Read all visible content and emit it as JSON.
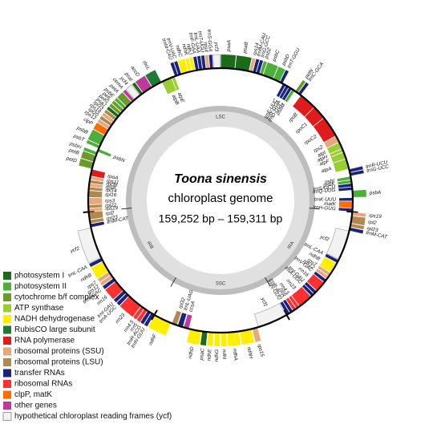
{
  "title": "Toona sinensis",
  "subtitle": "chloroplast genome",
  "size": "159,252 bp – 159,311 bp",
  "regions": [
    {
      "name": "LSC",
      "genes": [
        {
          "label": "rps19",
          "color": "#e8a87c"
        },
        {
          "label": "rpl22",
          "color": "#b08850"
        },
        {
          "label": "rps3",
          "color": "#e8a87c"
        },
        {
          "label": "rpl16",
          "color": "#b08850"
        },
        {
          "label": "rpl14",
          "color": "#b08850"
        },
        {
          "label": "rps8",
          "color": "#e8a87c"
        },
        {
          "label": "rpl36",
          "color": "#b08850"
        },
        {
          "label": "rps11",
          "color": "#e8a87c"
        },
        {
          "label": "rpoA",
          "color": "#e01b1b"
        },
        {
          "label": "petD",
          "color": "#6b9a2a"
        },
        {
          "label": "petB",
          "color": "#6b9a2a"
        },
        {
          "label": "psbH",
          "color": "#4caf3a"
        },
        {
          "label": "psbN",
          "color": "#4caf3a"
        },
        {
          "label": "psbT",
          "color": "#4caf3a"
        },
        {
          "label": "psbB",
          "color": "#4caf3a"
        },
        {
          "label": "clpP",
          "color": "#ff6d00"
        },
        {
          "label": "rps12",
          "color": "#e8a87c"
        },
        {
          "label": "rpl20",
          "color": "#b08850"
        },
        {
          "label": "rps18",
          "color": "#e8a87c"
        },
        {
          "label": "rpl33",
          "color": "#b08850"
        },
        {
          "label": "psaJ",
          "color": "#1b6b1b"
        },
        {
          "label": "petG",
          "color": "#6b9a2a"
        },
        {
          "label": "petL",
          "color": "#6b9a2a"
        },
        {
          "label": "psbE",
          "color": "#4caf3a"
        },
        {
          "label": "petA",
          "color": "#6b9a2a"
        },
        {
          "label": "cemA",
          "color": "#c0399a"
        },
        {
          "label": "ycf4",
          "color": "#f2f2f2"
        },
        {
          "label": "psaI",
          "color": "#1b6b1b"
        },
        {
          "label": "accD",
          "color": "#c0399a"
        },
        {
          "label": "rbcL",
          "color": "#1f7a3a"
        },
        {
          "label": "atpB",
          "color": "#9acd32"
        },
        {
          "label": "atpE",
          "color": "#9acd32"
        },
        {
          "label": "trnM-CAU",
          "color": "#1a237e"
        },
        {
          "label": "trnV-UAC",
          "color": "#1a237e"
        },
        {
          "label": "ndhC",
          "color": "#ffee00"
        },
        {
          "label": "ndhK",
          "color": "#ffee00"
        },
        {
          "label": "ndhJ",
          "color": "#ffee00"
        },
        {
          "label": "trnF-GAA",
          "color": "#1a237e"
        },
        {
          "label": "trnL-UAA",
          "color": "#1a237e"
        },
        {
          "label": "trnT-UGU",
          "color": "#1a237e"
        },
        {
          "label": "rps4",
          "color": "#e8a87c"
        },
        {
          "label": "trnS-GGA",
          "color": "#1a237e"
        },
        {
          "label": "ycf3",
          "color": "#f2f2f2"
        },
        {
          "label": "psaA",
          "color": "#1b6b1b"
        },
        {
          "label": "psaB",
          "color": "#1b6b1b"
        },
        {
          "label": "rps14",
          "color": "#e8a87c"
        },
        {
          "label": "trnfM-CAU",
          "color": "#1a237e"
        },
        {
          "label": "trnG-GCC",
          "color": "#1a237e"
        },
        {
          "label": "psbZ",
          "color": "#4caf3a"
        },
        {
          "label": "psbC",
          "color": "#4caf3a"
        },
        {
          "label": "psbD",
          "color": "#4caf3a"
        },
        {
          "label": "trnT-GGU",
          "color": "#1a237e"
        },
        {
          "label": "trnE-UUC",
          "color": "#1a237e"
        },
        {
          "label": "trnY-GUA",
          "color": "#1a237e"
        },
        {
          "label": "trnD-GUC",
          "color": "#1a237e"
        },
        {
          "label": "psbM",
          "color": "#4caf3a"
        },
        {
          "label": "petN",
          "color": "#6b9a2a"
        },
        {
          "label": "trnC-GCA",
          "color": "#1a237e"
        },
        {
          "label": "rpoB",
          "color": "#e01b1b"
        },
        {
          "label": "rpoC1",
          "color": "#e01b1b"
        },
        {
          "label": "rpoC2",
          "color": "#e01b1b"
        },
        {
          "label": "rps2",
          "color": "#e8a87c"
        },
        {
          "label": "atpI",
          "color": "#9acd32"
        },
        {
          "label": "atpH",
          "color": "#9acd32"
        },
        {
          "label": "atpF",
          "color": "#9acd32"
        },
        {
          "label": "atpA",
          "color": "#9acd32"
        },
        {
          "label": "trnR-UCU",
          "color": "#1a237e"
        },
        {
          "label": "trnG-UCC",
          "color": "#1a237e"
        },
        {
          "label": "psbI",
          "color": "#4caf3a"
        },
        {
          "label": "psbK",
          "color": "#4caf3a"
        },
        {
          "label": "trnS-GCU",
          "color": "#1a237e"
        },
        {
          "label": "trnQ-UUG",
          "color": "#1a237e"
        },
        {
          "label": "psbA",
          "color": "#4caf3a"
        },
        {
          "label": "trnK-UUU",
          "color": "#1a237e"
        },
        {
          "label": "matK",
          "color": "#ff6d00"
        },
        {
          "label": "trnH-GUG",
          "color": "#1a237e"
        }
      ]
    },
    {
      "name": "IRA",
      "genes": [
        {
          "label": "rps19",
          "color": "#e8a87c"
        },
        {
          "label": "rpl2",
          "color": "#b08850"
        },
        {
          "label": "rpl23",
          "color": "#b08850"
        },
        {
          "label": "trnM-CAT",
          "color": "#1a237e"
        },
        {
          "label": "ycf2",
          "color": "#f2f2f2"
        },
        {
          "label": "trnL-CAA",
          "color": "#1a237e"
        },
        {
          "label": "ndhB",
          "color": "#ffee00"
        },
        {
          "label": "rps7",
          "color": "#e8a87c"
        },
        {
          "label": "rps12",
          "color": "#e8a87c"
        },
        {
          "label": "trnV-GAC",
          "color": "#1a237e"
        },
        {
          "label": "rrn16",
          "color": "#ff3030"
        },
        {
          "label": "trnI-GAU",
          "color": "#1a237e"
        },
        {
          "label": "trnA-UGC",
          "color": "#1a237e"
        },
        {
          "label": "rrn23",
          "color": "#ff3030"
        },
        {
          "label": "rrn4.5",
          "color": "#ff3030"
        },
        {
          "label": "rrn5",
          "color": "#ff3030"
        },
        {
          "label": "trnR-ACG",
          "color": "#1a237e"
        },
        {
          "label": "trnN-GUU",
          "color": "#1a237e"
        }
      ]
    },
    {
      "name": "SSC",
      "genes": [
        {
          "label": "ycf1",
          "color": "#f2f2f2"
        },
        {
          "label": "rps15",
          "color": "#e8a87c"
        },
        {
          "label": "ndhH",
          "color": "#ffee00"
        },
        {
          "label": "ndhA",
          "color": "#ffee00"
        },
        {
          "label": "ndhI",
          "color": "#ffee00"
        },
        {
          "label": "ndhG",
          "color": "#ffee00"
        },
        {
          "label": "ndhE",
          "color": "#ffee00"
        },
        {
          "label": "psaC",
          "color": "#1b6b1b"
        },
        {
          "label": "ndhD",
          "color": "#ffee00"
        },
        {
          "label": "ccsA",
          "color": "#c0399a"
        },
        {
          "label": "trnL-UAG",
          "color": "#1a237e"
        },
        {
          "label": "rpl32",
          "color": "#b08850"
        },
        {
          "label": "ndhF",
          "color": "#ffee00"
        }
      ]
    },
    {
      "name": "IRB",
      "genes": [
        {
          "label": "trnN-GUU",
          "color": "#1a237e"
        },
        {
          "label": "trnR-ACG",
          "color": "#1a237e"
        },
        {
          "label": "rrn5",
          "color": "#ff3030"
        },
        {
          "label": "rrn4.5",
          "color": "#ff3030"
        },
        {
          "label": "rrn23",
          "color": "#ff3030"
        },
        {
          "label": "trnA-UGC",
          "color": "#1a237e"
        },
        {
          "label": "trnI-GAU",
          "color": "#1a237e"
        },
        {
          "label": "rrn16",
          "color": "#ff3030"
        },
        {
          "label": "trnV-GAC",
          "color": "#1a237e"
        },
        {
          "label": "rps12",
          "color": "#e8a87c"
        },
        {
          "label": "rps7",
          "color": "#e8a87c"
        },
        {
          "label": "ndhB",
          "color": "#ffee00"
        },
        {
          "label": "trnL-CAA",
          "color": "#1a237e"
        },
        {
          "label": "ycf2",
          "color": "#f2f2f2"
        },
        {
          "label": "trnM-CAT",
          "color": "#1a237e"
        },
        {
          "label": "rpl23",
          "color": "#b08850"
        },
        {
          "label": "rpl2",
          "color": "#b08850"
        }
      ]
    }
  ],
  "legend": [
    {
      "label": "photosystem I",
      "color": "#1b6b1b"
    },
    {
      "label": "photosystem II",
      "color": "#4caf3a"
    },
    {
      "label": "cytochrome b/f complex",
      "color": "#6b9a2a"
    },
    {
      "label": "ATP synthase",
      "color": "#9acd32"
    },
    {
      "label": "NADH dehydrogenase",
      "color": "#ffee00"
    },
    {
      "label": "RubisCO large subunit",
      "color": "#1f7a3a"
    },
    {
      "label": "RNA polymerase",
      "color": "#e01b1b"
    },
    {
      "label": "ribosomal proteins (SSU)",
      "color": "#e8a87c"
    },
    {
      "label": "ribosomal proteins (LSU)",
      "color": "#b08850"
    },
    {
      "label": "transfer RNAs",
      "color": "#1a237e"
    },
    {
      "label": "ribosomal RNAs",
      "color": "#ff3030"
    },
    {
      "label": "clpP, matK",
      "color": "#ff6d00"
    },
    {
      "label": "other genes",
      "color": "#c0399a"
    },
    {
      "label": "hypothetical chloroplast reading frames (ycf)",
      "color": "#f2f2f2"
    }
  ]
}
